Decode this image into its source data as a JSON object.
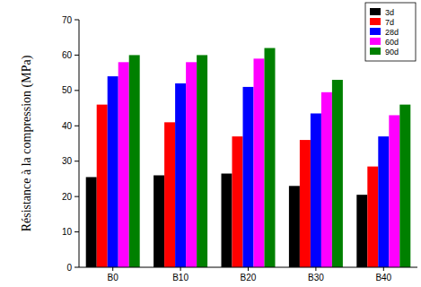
{
  "chart_data": {
    "type": "bar",
    "y_label": "Résistance à la compression (MPa)",
    "categories": [
      "B0",
      "B10",
      "B20",
      "B30",
      "B40"
    ],
    "series": [
      {
        "name": "3d",
        "color": "#000000",
        "values": [
          25.5,
          26,
          26.5,
          23,
          20.5
        ]
      },
      {
        "name": "7d",
        "color": "#ff0000",
        "values": [
          46,
          41,
          37,
          36,
          28.5
        ]
      },
      {
        "name": "28d",
        "color": "#0000ff",
        "values": [
          54,
          52,
          51,
          43.5,
          37
        ]
      },
      {
        "name": "60d",
        "color": "#ff00ff",
        "values": [
          58,
          58,
          59,
          49.5,
          43
        ]
      },
      {
        "name": "90d",
        "color": "#008000",
        "values": [
          60,
          60,
          62,
          53,
          46
        ]
      }
    ],
    "ylim": [
      0,
      70
    ],
    "yticks": [
      0,
      10,
      20,
      30,
      40,
      50,
      60,
      70
    ],
    "legend": "top-right",
    "grid": false
  }
}
